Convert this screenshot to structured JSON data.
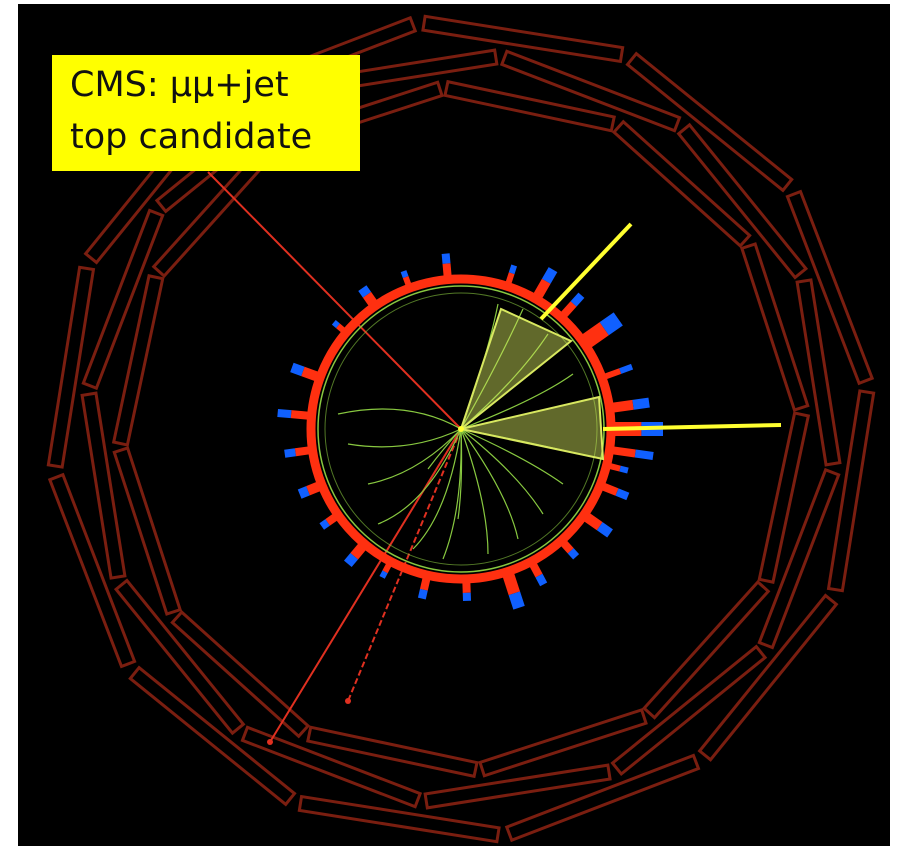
{
  "caption": {
    "line1": "CMS: μμ+jet",
    "line2": "top candidate"
  },
  "colors": {
    "background": "#000000",
    "muon_chambers": "#7a1e10",
    "muon_tracks": "#e03020",
    "tracks": "#88c840",
    "jets": "#d8e860",
    "met_and_jet_lines": "#ffff30",
    "ecal_deposits": "#ff3010",
    "hcal_deposits": "#1060ff",
    "caption_background": "#ffff00"
  },
  "scene": {
    "view": "transverse plane event display",
    "jet_count": 2,
    "muon_count": 2
  }
}
